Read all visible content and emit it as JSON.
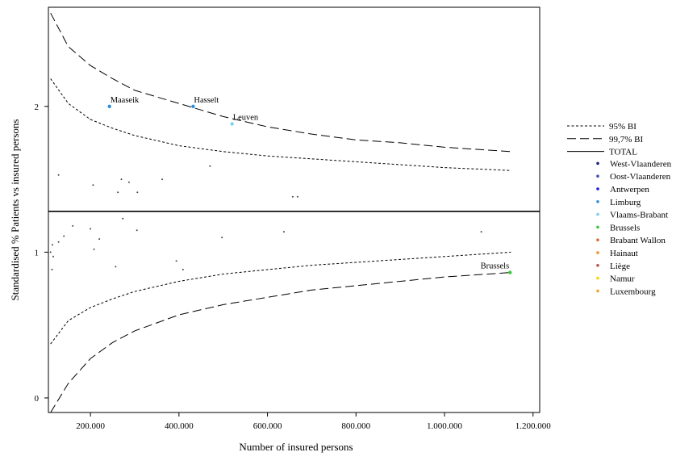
{
  "chart_data": {
    "type": "scatter",
    "title": "",
    "xlabel": "Number of insured persons",
    "ylabel": "Standardised % Patients vs insured persons",
    "xlim": [
      105000,
      1215000
    ],
    "ylim": [
      -0.1,
      2.68
    ],
    "x_ticks": [
      200000,
      400000,
      600000,
      800000,
      1000000,
      1200000
    ],
    "x_tick_labels": [
      "200.000",
      "400.000",
      "600.000",
      "800.000",
      "1.000.000",
      "1.200.000"
    ],
    "y_ticks": [
      0,
      1,
      2
    ],
    "y_tick_labels": [
      "0",
      "1",
      "2"
    ],
    "grid": false,
    "legend_position": "right",
    "total": 1.28,
    "reference_lines": [
      {
        "name": "95% BI",
        "style": "dotted",
        "upper": [
          [
            110000,
            2.19
          ],
          [
            150000,
            2.02
          ],
          [
            200000,
            1.91
          ],
          [
            250000,
            1.85
          ],
          [
            300000,
            1.8
          ],
          [
            400000,
            1.73
          ],
          [
            500000,
            1.69
          ],
          [
            600000,
            1.66
          ],
          [
            700000,
            1.64
          ],
          [
            800000,
            1.62
          ],
          [
            900000,
            1.6
          ],
          [
            1000000,
            1.58
          ],
          [
            1150000,
            1.56
          ]
        ],
        "lower": [
          [
            110000,
            0.37
          ],
          [
            150000,
            0.53
          ],
          [
            200000,
            0.62
          ],
          [
            250000,
            0.68
          ],
          [
            300000,
            0.73
          ],
          [
            400000,
            0.8
          ],
          [
            500000,
            0.85
          ],
          [
            600000,
            0.88
          ],
          [
            700000,
            0.91
          ],
          [
            800000,
            0.93
          ],
          [
            900000,
            0.95
          ],
          [
            1000000,
            0.97
          ],
          [
            1150000,
            1.0
          ]
        ]
      },
      {
        "name": "99,7% BI",
        "style": "dashed",
        "upper": [
          [
            110000,
            2.64
          ],
          [
            150000,
            2.41
          ],
          [
            200000,
            2.28
          ],
          [
            250000,
            2.19
          ],
          [
            300000,
            2.11
          ],
          [
            400000,
            2.02
          ],
          [
            500000,
            1.93
          ],
          [
            600000,
            1.86
          ],
          [
            700000,
            1.81
          ],
          [
            800000,
            1.77
          ],
          [
            900000,
            1.75
          ],
          [
            1000000,
            1.72
          ],
          [
            1150000,
            1.69
          ]
        ],
        "lower": [
          [
            110000,
            -0.1
          ],
          [
            150000,
            0.1
          ],
          [
            200000,
            0.27
          ],
          [
            250000,
            0.38
          ],
          [
            300000,
            0.46
          ],
          [
            400000,
            0.57
          ],
          [
            500000,
            0.64
          ],
          [
            600000,
            0.69
          ],
          [
            700000,
            0.74
          ],
          [
            800000,
            0.77
          ],
          [
            900000,
            0.8
          ],
          [
            1000000,
            0.83
          ],
          [
            1150000,
            0.86
          ]
        ]
      }
    ],
    "legend": [
      {
        "label": "95% BI",
        "style": "dotted"
      },
      {
        "label": "99,7% BI",
        "style": "dashed"
      },
      {
        "label": "TOTAL",
        "style": "solid"
      },
      {
        "label": "West-Vlaanderen",
        "color": "#1a237e"
      },
      {
        "label": "Oost-Vlaanderen",
        "color": "#3f51b5"
      },
      {
        "label": "Antwerpen",
        "color": "#1e1ee6"
      },
      {
        "label": "Limburg",
        "color": "#2a8fe0"
      },
      {
        "label": "Vlaams-Brabant",
        "color": "#7fd0f0"
      },
      {
        "label": "Brussels",
        "color": "#3cc63c"
      },
      {
        "label": "Brabant Wallon",
        "color": "#e06a3a"
      },
      {
        "label": "Hainaut",
        "color": "#f28c28"
      },
      {
        "label": "Liège",
        "color": "#c0504d"
      },
      {
        "label": "Namur",
        "color": "#f5d800"
      },
      {
        "label": "Luxembourg",
        "color": "#f0a030"
      }
    ],
    "points": [
      {
        "x": 243000,
        "y": 2.0,
        "color": "#2a8fe0",
        "label": "Maaseik"
      },
      {
        "x": 432000,
        "y": 2.0,
        "color": "#2a8fe0",
        "label": "Hasselt"
      },
      {
        "x": 520000,
        "y": 1.88,
        "color": "#7fd0f0",
        "label": "Leuven"
      },
      {
        "x": 1148000,
        "y": 0.86,
        "color": "#3cc63c",
        "label": "Brussels"
      },
      {
        "x": 200000,
        "y": 1.91,
        "color": "#777777"
      },
      {
        "x": 128000,
        "y": 1.53,
        "color": "#444444"
      },
      {
        "x": 206000,
        "y": 1.46,
        "color": "#444444"
      },
      {
        "x": 262000,
        "y": 1.41,
        "color": "#444444"
      },
      {
        "x": 270000,
        "y": 1.5,
        "color": "#444444"
      },
      {
        "x": 287000,
        "y": 1.48,
        "color": "#444444"
      },
      {
        "x": 306000,
        "y": 1.41,
        "color": "#444444"
      },
      {
        "x": 362000,
        "y": 1.5,
        "color": "#444444"
      },
      {
        "x": 470000,
        "y": 1.59,
        "color": "#444444"
      },
      {
        "x": 657000,
        "y": 1.38,
        "color": "#444444"
      },
      {
        "x": 668000,
        "y": 1.38,
        "color": "#444444"
      },
      {
        "x": 110000,
        "y": 1.0,
        "color": "#444444"
      },
      {
        "x": 114000,
        "y": 1.05,
        "color": "#444444"
      },
      {
        "x": 116000,
        "y": 0.97,
        "color": "#444444"
      },
      {
        "x": 113000,
        "y": 0.88,
        "color": "#444444"
      },
      {
        "x": 128000,
        "y": 1.07,
        "color": "#444444"
      },
      {
        "x": 140000,
        "y": 1.11,
        "color": "#444444"
      },
      {
        "x": 160000,
        "y": 1.18,
        "color": "#444444"
      },
      {
        "x": 200000,
        "y": 1.16,
        "color": "#444444"
      },
      {
        "x": 208000,
        "y": 1.02,
        "color": "#444444"
      },
      {
        "x": 220000,
        "y": 1.09,
        "color": "#444444"
      },
      {
        "x": 257000,
        "y": 0.9,
        "color": "#444444"
      },
      {
        "x": 273000,
        "y": 1.23,
        "color": "#444444"
      },
      {
        "x": 305000,
        "y": 1.15,
        "color": "#444444"
      },
      {
        "x": 394000,
        "y": 0.94,
        "color": "#444444"
      },
      {
        "x": 409000,
        "y": 0.88,
        "color": "#444444"
      },
      {
        "x": 497000,
        "y": 1.1,
        "color": "#444444"
      },
      {
        "x": 637000,
        "y": 1.14,
        "color": "#444444"
      },
      {
        "x": 1083000,
        "y": 1.14,
        "color": "#444444"
      }
    ]
  }
}
